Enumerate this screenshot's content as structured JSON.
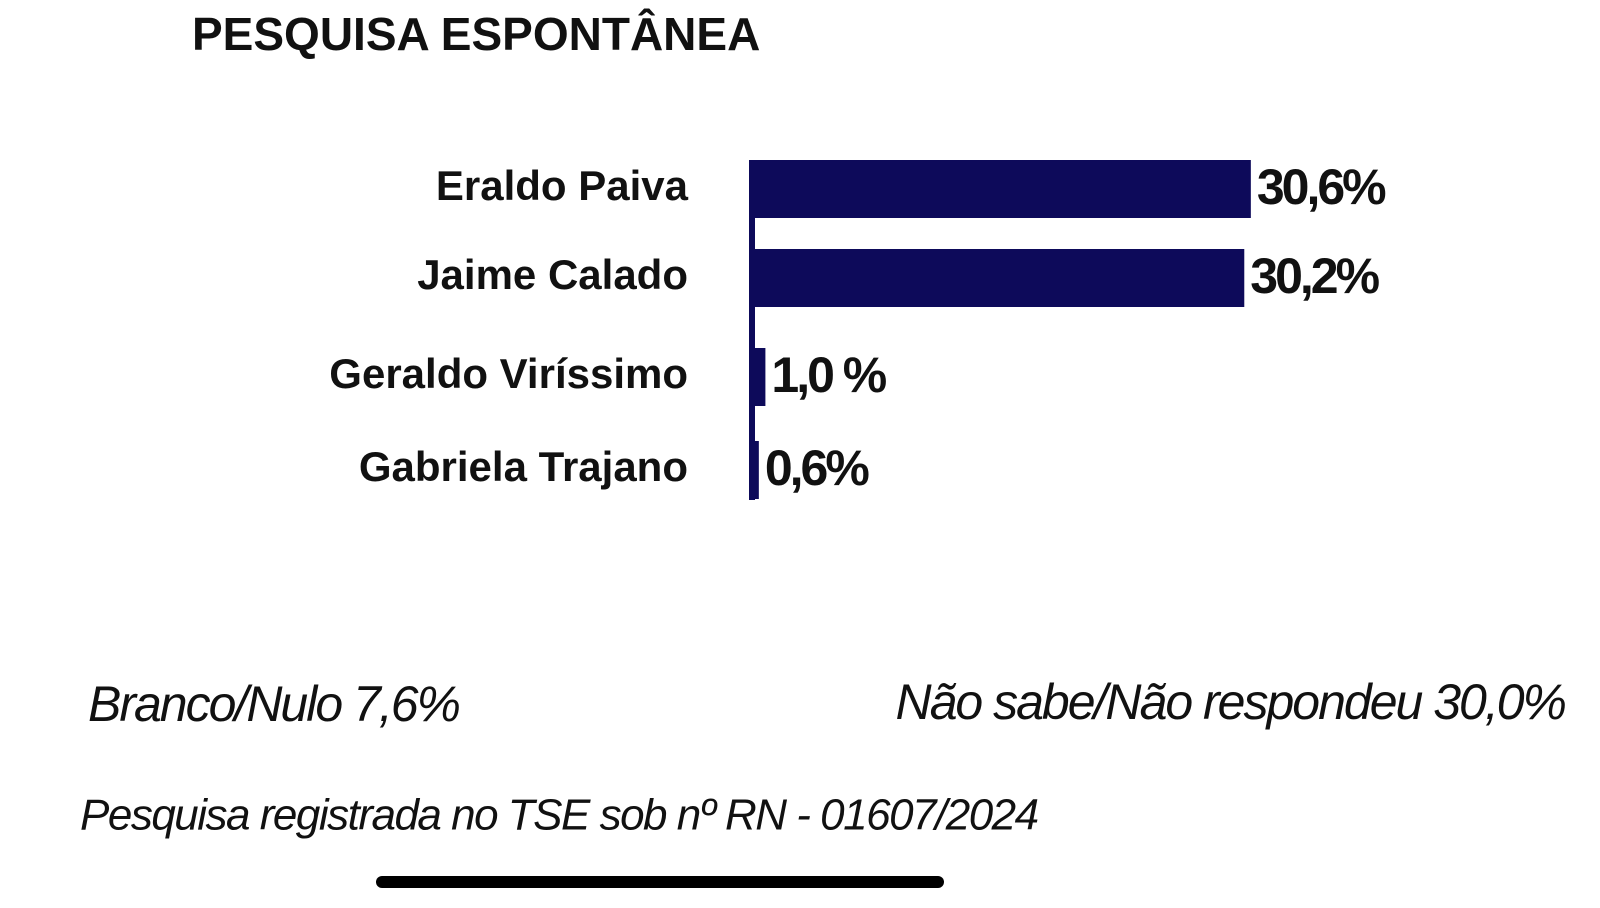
{
  "chart_data": {
    "type": "bar",
    "orientation": "horizontal",
    "title": "PESQUISA ESPONTÂNEA",
    "categories": [
      "Eraldo Paiva",
      "Jaime Calado",
      "Geraldo Viríssimo",
      "Gabriela Trajano"
    ],
    "values": [
      30.6,
      30.2,
      1.0,
      0.6
    ],
    "value_labels": [
      "30,6%",
      "30,2%",
      "1,0 %",
      "0,6%"
    ],
    "color": "#0d0a5a",
    "annotations": [
      "Branco/Nulo 7,6%",
      "Não sabe/Não respondeu 30,0%",
      "Pesquisa registrada no TSE sob nº RN - 01607/2024"
    ]
  }
}
